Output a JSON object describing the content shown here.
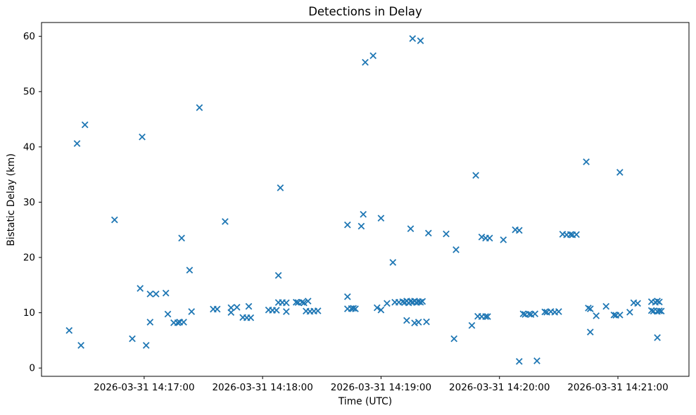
{
  "figure": {
    "background": "#ffffff",
    "axes_frame_color": "#000000"
  },
  "chart_data": {
    "type": "scatter",
    "title": "Detections in Delay",
    "xlabel": "Time (UTC)",
    "ylabel": "Bistatic Delay (km)",
    "marker": "x",
    "marker_color": "#1f77b4",
    "grid": false,
    "legend": "none",
    "xlim": [
      "14:16:08",
      "14:21:36"
    ],
    "ylim": [
      -1.5,
      62.5
    ],
    "y_ticks": [
      0,
      10,
      20,
      30,
      40,
      50,
      60
    ],
    "x_ticks": [
      {
        "label": "2026-03-31 14:17:00",
        "time": "14:17:00"
      },
      {
        "label": "2026-03-31 14:18:00",
        "time": "14:18:00"
      },
      {
        "label": "2026-03-31 14:19:00",
        "time": "14:19:00"
      },
      {
        "label": "2026-03-31 14:20:00",
        "time": "14:20:00"
      },
      {
        "label": "2026-03-31 14:21:00",
        "time": "14:21:00"
      }
    ],
    "points": [
      [
        "14:16:22",
        6.8
      ],
      [
        "14:16:26",
        40.6
      ],
      [
        "14:16:28",
        4.1
      ],
      [
        "14:16:30",
        44.0
      ],
      [
        "14:16:45",
        26.8
      ],
      [
        "14:16:54",
        5.3
      ],
      [
        "14:16:58",
        14.4
      ],
      [
        "14:16:59",
        41.8
      ],
      [
        "14:17:01",
        4.1
      ],
      [
        "14:17:03",
        8.3
      ],
      [
        "14:17:03",
        13.4
      ],
      [
        "14:17:06",
        13.4
      ],
      [
        "14:17:11",
        13.55
      ],
      [
        "14:17:12",
        9.75
      ],
      [
        "14:17:15",
        8.2
      ],
      [
        "14:17:17",
        8.2
      ],
      [
        "14:17:18",
        8.3
      ],
      [
        "14:17:19",
        23.5
      ],
      [
        "14:17:20",
        8.3
      ],
      [
        "14:17:23",
        17.7
      ],
      [
        "14:17:24",
        10.2
      ],
      [
        "14:17:28",
        47.1
      ],
      [
        "14:17:35",
        10.65
      ],
      [
        "14:17:37",
        10.65
      ],
      [
        "14:17:41",
        26.5
      ],
      [
        "14:17:44",
        10.9
      ],
      [
        "14:17:44",
        10.05
      ],
      [
        "14:17:47",
        11.0
      ],
      [
        "14:17:50",
        9.15
      ],
      [
        "14:17:52",
        9.1
      ],
      [
        "14:17:53",
        11.15
      ],
      [
        "14:17:54",
        9.1
      ],
      [
        "14:18:03",
        10.5
      ],
      [
        "14:18:05",
        10.45
      ],
      [
        "14:18:07",
        10.45
      ],
      [
        "14:18:08",
        11.85
      ],
      [
        "14:18:08",
        16.75
      ],
      [
        "14:18:09",
        32.6
      ],
      [
        "14:18:10",
        11.85
      ],
      [
        "14:18:12",
        11.8
      ],
      [
        "14:18:12",
        10.2
      ],
      [
        "14:18:17",
        11.9
      ],
      [
        "14:18:18",
        11.85
      ],
      [
        "14:18:20",
        11.9
      ],
      [
        "14:18:21",
        11.8
      ],
      [
        "14:18:22",
        10.3
      ],
      [
        "14:18:23",
        12.1
      ],
      [
        "14:18:24",
        10.25
      ],
      [
        "14:18:26",
        10.3
      ],
      [
        "14:18:28",
        10.35
      ],
      [
        "14:18:43",
        25.9
      ],
      [
        "14:18:43",
        12.9
      ],
      [
        "14:18:43",
        10.7
      ],
      [
        "14:18:45",
        10.75
      ],
      [
        "14:18:46",
        10.8
      ],
      [
        "14:18:47",
        10.7
      ],
      [
        "14:18:50",
        25.65
      ],
      [
        "14:18:51",
        27.8
      ],
      [
        "14:18:52",
        55.3
      ],
      [
        "14:18:56",
        56.5
      ],
      [
        "14:18:58",
        10.9
      ],
      [
        "14:19:00",
        27.1
      ],
      [
        "14:19:00",
        10.5
      ],
      [
        "14:19:03",
        11.7
      ],
      [
        "14:19:06",
        19.1
      ],
      [
        "14:19:07",
        11.9
      ],
      [
        "14:19:09",
        11.9
      ],
      [
        "14:19:11",
        12.0
      ],
      [
        "14:19:12",
        11.85
      ],
      [
        "14:19:13",
        12.1
      ],
      [
        "14:19:13",
        8.6
      ],
      [
        "14:19:14",
        11.8
      ],
      [
        "14:19:15",
        25.2
      ],
      [
        "14:19:15",
        12.05
      ],
      [
        "14:19:16",
        59.6
      ],
      [
        "14:19:16",
        11.9
      ],
      [
        "14:19:17",
        12.1
      ],
      [
        "14:19:17",
        8.15
      ],
      [
        "14:19:18",
        11.85
      ],
      [
        "14:19:19",
        12.0
      ],
      [
        "14:19:19",
        8.3
      ],
      [
        "14:19:20",
        59.2
      ],
      [
        "14:19:20",
        11.9
      ],
      [
        "14:19:21",
        12.05
      ],
      [
        "14:19:23",
        8.35
      ],
      [
        "14:19:24",
        24.4
      ],
      [
        "14:19:33",
        24.25
      ],
      [
        "14:19:37",
        5.3
      ],
      [
        "14:19:38",
        21.4
      ],
      [
        "14:19:46",
        7.7
      ],
      [
        "14:19:48",
        34.85
      ],
      [
        "14:19:49",
        9.35
      ],
      [
        "14:19:51",
        9.3
      ],
      [
        "14:19:51",
        23.7
      ],
      [
        "14:19:53",
        9.3
      ],
      [
        "14:19:53",
        23.5
      ],
      [
        "14:19:54",
        9.3
      ],
      [
        "14:19:55",
        23.5
      ],
      [
        "14:20:02",
        23.2
      ],
      [
        "14:20:08",
        25.0
      ],
      [
        "14:20:10",
        24.9
      ],
      [
        "14:20:10",
        1.2
      ],
      [
        "14:20:12",
        9.8
      ],
      [
        "14:20:13",
        9.7
      ],
      [
        "14:20:15",
        9.75
      ],
      [
        "14:20:16",
        9.7
      ],
      [
        "14:20:18",
        9.8
      ],
      [
        "14:20:19",
        1.3
      ],
      [
        "14:20:23",
        10.15
      ],
      [
        "14:20:24",
        10.1
      ],
      [
        "14:20:26",
        10.2
      ],
      [
        "14:20:28",
        10.1
      ],
      [
        "14:20:30",
        10.2
      ],
      [
        "14:20:32",
        24.2
      ],
      [
        "14:20:34",
        24.1
      ],
      [
        "14:20:36",
        24.15
      ],
      [
        "14:20:37",
        24.1
      ],
      [
        "14:20:39",
        24.15
      ],
      [
        "14:20:44",
        37.3
      ],
      [
        "14:20:45",
        10.85
      ],
      [
        "14:20:46",
        10.7
      ],
      [
        "14:20:46",
        6.5
      ],
      [
        "14:20:49",
        9.45
      ],
      [
        "14:20:54",
        11.15
      ],
      [
        "14:20:58",
        9.6
      ],
      [
        "14:20:59",
        9.55
      ],
      [
        "14:21:01",
        35.4
      ],
      [
        "14:21:01",
        9.6
      ],
      [
        "14:21:06",
        10.1
      ],
      [
        "14:21:08",
        11.8
      ],
      [
        "14:21:10",
        11.7
      ],
      [
        "14:21:17",
        12.0
      ],
      [
        "14:21:17",
        10.4
      ],
      [
        "14:21:18",
        10.3
      ],
      [
        "14:21:19",
        11.9
      ],
      [
        "14:21:20",
        12.1
      ],
      [
        "14:21:20",
        10.25
      ],
      [
        "14:21:20",
        5.5
      ],
      [
        "14:21:21",
        11.95
      ],
      [
        "14:21:21",
        10.35
      ],
      [
        "14:21:22",
        10.3
      ]
    ]
  }
}
